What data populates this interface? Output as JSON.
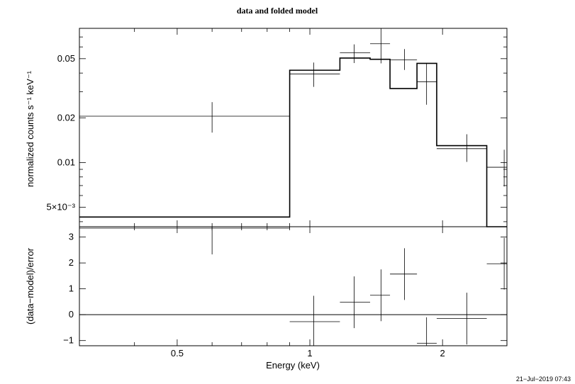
{
  "chart_data": [
    {
      "type": "line",
      "panel": "upper",
      "title": "data and folded model",
      "ylabel": "normalized counts s⁻¹ keV⁻¹",
      "yscale": "log",
      "xscale": "log",
      "xlim": [
        0.3,
        2.8
      ],
      "ylim": [
        0.0037,
        0.08
      ],
      "y_ticks": [
        {
          "value": 0.005,
          "label": "5×10⁻³"
        },
        {
          "value": 0.01,
          "label": "0.01"
        },
        {
          "value": 0.02,
          "label": "0.02"
        },
        {
          "value": 0.05,
          "label": "0.05"
        }
      ],
      "series": [
        {
          "style": "data crosses",
          "points": [
            {
              "x": 0.6,
              "xlo": 0.3,
              "xhi": 0.9,
              "y": 0.0205,
              "ylo": 0.0159,
              "yhi": 0.0255
            },
            {
              "x": 1.02,
              "xlo": 0.9,
              "xhi": 1.17,
              "y": 0.0395,
              "ylo": 0.0323,
              "yhi": 0.0471
            },
            {
              "x": 1.26,
              "xlo": 1.17,
              "xhi": 1.37,
              "y": 0.0548,
              "ylo": 0.0467,
              "yhi": 0.0624
            },
            {
              "x": 1.45,
              "xlo": 1.37,
              "xhi": 1.52,
              "y": 0.063,
              "ylo": 0.0465,
              "yhi": 0.0838
            },
            {
              "x": 1.64,
              "xlo": 1.52,
              "xhi": 1.75,
              "y": 0.049,
              "ylo": 0.042,
              "yhi": 0.058
            },
            {
              "x": 1.84,
              "xlo": 1.75,
              "xhi": 1.94,
              "y": 0.035,
              "ylo": 0.0245,
              "yhi": 0.0468
            },
            {
              "x": 2.27,
              "xlo": 1.94,
              "xhi": 2.52,
              "y": 0.0124,
              "ylo": 0.0101,
              "yhi": 0.0155
            },
            {
              "x": 2.76,
              "xlo": 2.52,
              "xhi": 2.9,
              "y": 0.0093,
              "ylo": 0.0069,
              "yhi": 0.0122
            }
          ]
        },
        {
          "style": "folded model histogram",
          "steps": [
            {
              "xlo": 0.3,
              "xhi": 0.9,
              "y": 0.0043
            },
            {
              "xlo": 0.9,
              "xhi": 1.17,
              "y": 0.0418
            },
            {
              "xlo": 1.17,
              "xhi": 1.37,
              "y": 0.0505
            },
            {
              "xlo": 1.37,
              "xhi": 1.52,
              "y": 0.0495
            },
            {
              "xlo": 1.52,
              "xhi": 1.75,
              "y": 0.0315
            },
            {
              "xlo": 1.75,
              "xhi": 1.94,
              "y": 0.0465
            },
            {
              "xlo": 1.94,
              "xhi": 2.52,
              "y": 0.013
            },
            {
              "xlo": 2.52,
              "xhi": 2.9,
              "y": 0.0001
            }
          ]
        }
      ]
    },
    {
      "type": "scatter",
      "panel": "lower",
      "xlabel": "Energy (keV)",
      "ylabel": "(data−model)/error",
      "xscale": "log",
      "xlim": [
        0.3,
        2.8
      ],
      "ylim": [
        -1.2,
        3.4
      ],
      "x_ticks": [
        {
          "value": 0.5,
          "label": "0.5"
        },
        {
          "value": 1,
          "label": "1"
        },
        {
          "value": 2,
          "label": "2"
        }
      ],
      "y_ticks": [
        {
          "value": -1,
          "label": "−1"
        },
        {
          "value": 0,
          "label": "0"
        },
        {
          "value": 1,
          "label": "1"
        },
        {
          "value": 2,
          "label": "2"
        },
        {
          "value": 3,
          "label": "3"
        }
      ],
      "reference_line": 0,
      "series": [
        {
          "style": "residual crosses",
          "points": [
            {
              "x": 0.6,
              "xlo": 0.3,
              "xhi": 0.9,
              "y": 3.35,
              "ylo": 2.33,
              "yhi": 3.4
            },
            {
              "x": 1.02,
              "xlo": 0.9,
              "xhi": 1.17,
              "y": -0.27,
              "ylo": -1.27,
              "yhi": 0.73
            },
            {
              "x": 1.26,
              "xlo": 1.17,
              "xhi": 1.37,
              "y": 0.48,
              "ylo": -0.52,
              "yhi": 1.48
            },
            {
              "x": 1.45,
              "xlo": 1.37,
              "xhi": 1.52,
              "y": 0.75,
              "ylo": -0.25,
              "yhi": 1.75
            },
            {
              "x": 1.64,
              "xlo": 1.52,
              "xhi": 1.75,
              "y": 1.57,
              "ylo": 0.57,
              "yhi": 2.57
            },
            {
              "x": 1.84,
              "xlo": 1.75,
              "xhi": 1.94,
              "y": -1.1,
              "ylo": -2.1,
              "yhi": -0.1
            },
            {
              "x": 2.27,
              "xlo": 1.94,
              "xhi": 2.52,
              "y": -0.15,
              "ylo": -1.15,
              "yhi": 0.85
            },
            {
              "x": 2.76,
              "xlo": 2.52,
              "xhi": 2.9,
              "y": 1.97,
              "ylo": 0.97,
              "yhi": 2.97
            }
          ]
        }
      ]
    }
  ],
  "timestamp": "21−Jul−2019 07:43"
}
